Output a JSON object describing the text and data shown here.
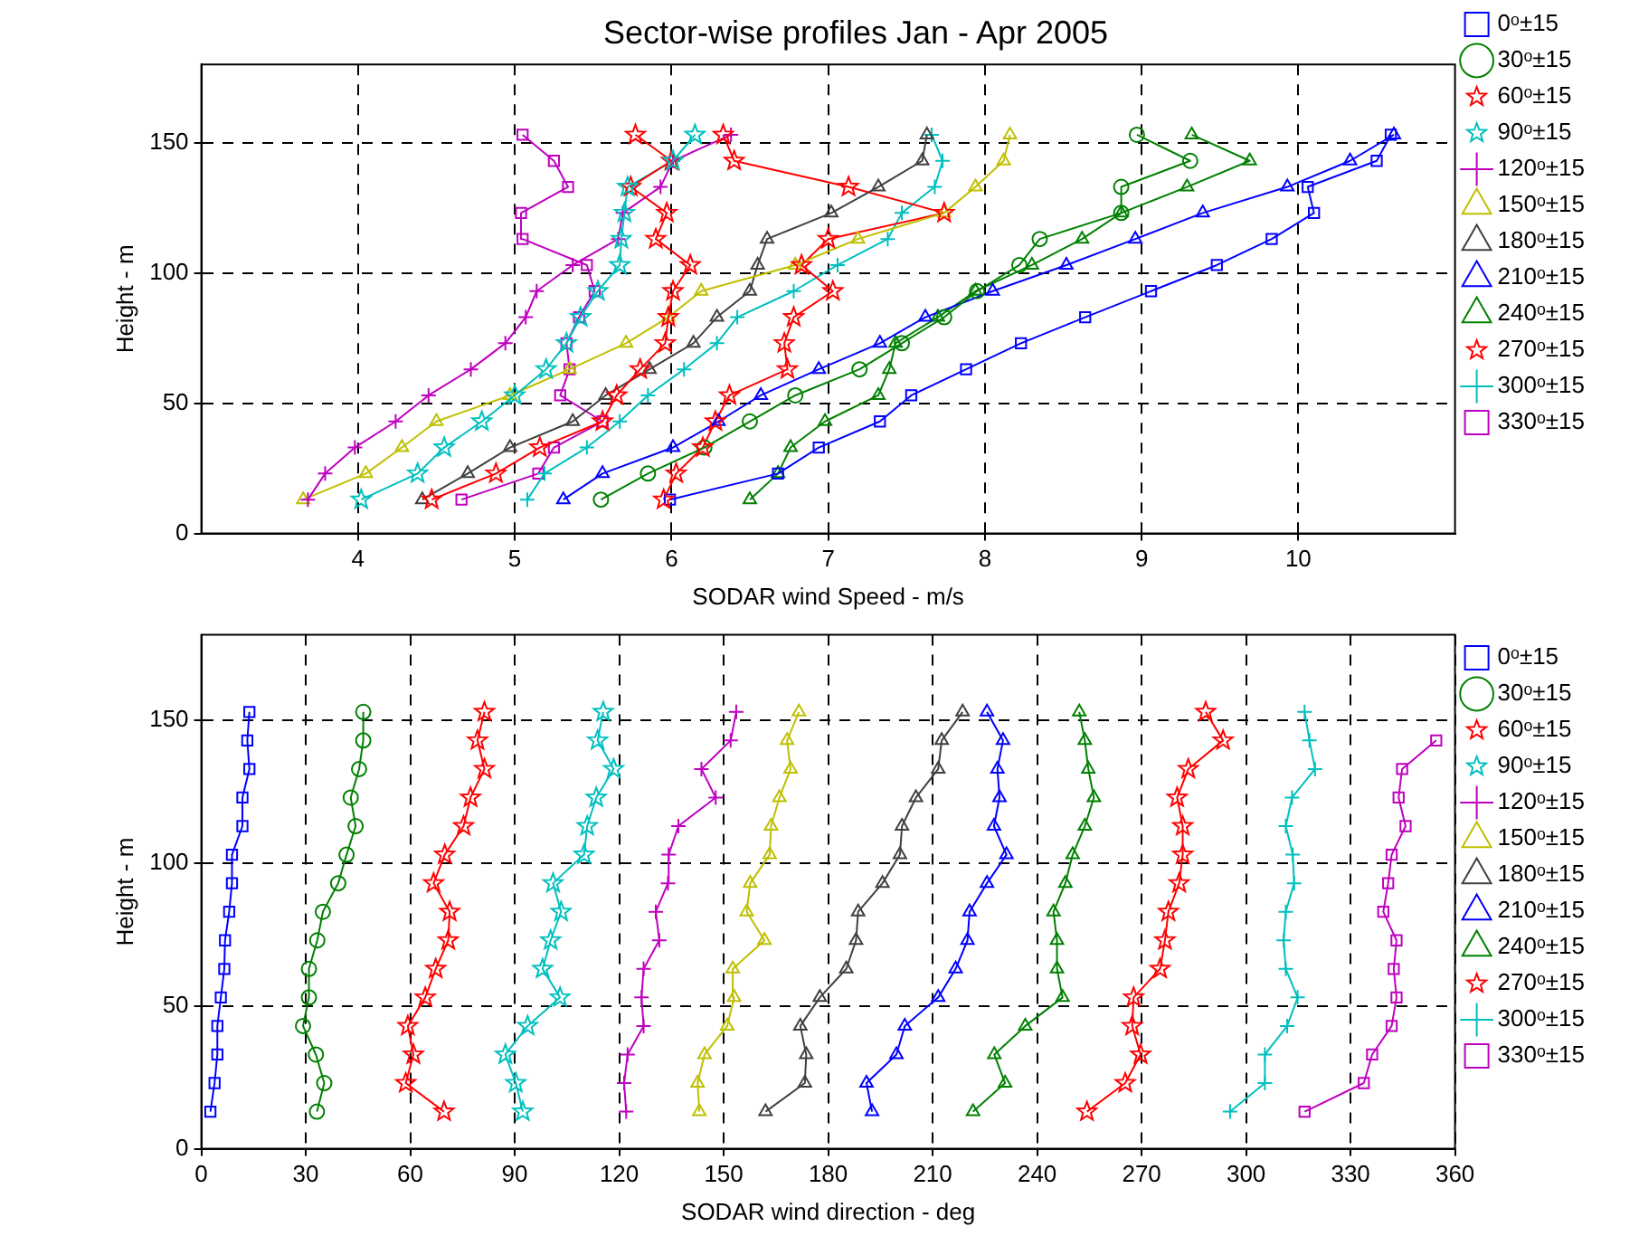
{
  "chart_data": [
    {
      "type": "line",
      "title": "Sector-wise profiles Jan - Apr 2005",
      "xlabel": "SODAR wind Speed - m/s",
      "ylabel": "Height - m",
      "xlim": [
        3,
        11
      ],
      "xticks": [
        4,
        5,
        6,
        7,
        8,
        9,
        10
      ],
      "ylim": [
        0,
        180
      ],
      "yticks": [
        0,
        50,
        100,
        150
      ],
      "grid": true,
      "legend": "right",
      "line_style": "solid",
      "series": [
        {
          "name": "0ᵒ±15",
          "color": "#0000ff",
          "marker": "square",
          "x": [
            5.99,
            6.68,
            6.94,
            7.33,
            7.53,
            7.88,
            8.23,
            8.64,
            9.06,
            9.48,
            9.83,
            10.1,
            10.06,
            10.5,
            10.59
          ],
          "values": [
            13,
            23,
            33,
            43,
            53,
            63,
            73,
            83,
            93,
            103,
            113,
            123,
            133,
            143,
            153
          ]
        },
        {
          "name": "30ᵒ±15",
          "color": "#008000",
          "marker": "circle",
          "x": [
            5.55,
            5.85,
            6.21,
            6.5,
            6.79,
            7.2,
            7.47,
            7.74,
            7.95,
            8.22,
            8.35,
            8.87,
            8.87,
            9.31,
            8.97
          ],
          "values": [
            13,
            23,
            33,
            43,
            53,
            63,
            73,
            83,
            93,
            103,
            113,
            123,
            133,
            143,
            153
          ]
        },
        {
          "name": "60ᵒ±15",
          "color": "#ff0000",
          "marker": "star",
          "x": [
            4.47,
            4.88,
            5.16,
            5.56,
            5.65,
            5.8,
            5.96,
            5.98,
            6.01,
            6.12,
            5.9,
            5.97,
            5.74,
            6.0,
            5.77
          ],
          "values": [
            13,
            23,
            33,
            43,
            53,
            63,
            73,
            83,
            93,
            103,
            113,
            123,
            133,
            143,
            153
          ]
        },
        {
          "name": "90ᵒ±15",
          "color": "#00bfbf",
          "marker": "star",
          "x": [
            4.02,
            4.38,
            4.55,
            4.79,
            5.0,
            5.2,
            5.33,
            5.42,
            5.53,
            5.67,
            5.68,
            5.7,
            5.72,
            6.01,
            6.15
          ],
          "values": [
            13,
            23,
            33,
            43,
            53,
            63,
            73,
            83,
            93,
            103,
            113,
            123,
            133,
            143,
            153
          ]
        },
        {
          "name": "120ᵒ±15",
          "color": "#bf00bf",
          "marker": "cross",
          "x": [
            3.68,
            3.79,
            3.98,
            4.24,
            4.45,
            4.72,
            4.94,
            5.07,
            5.14,
            5.37,
            5.66,
            5.69,
            5.93,
            6.01,
            6.38
          ],
          "values": [
            13,
            23,
            33,
            43,
            53,
            63,
            73,
            83,
            93,
            103,
            113,
            123,
            133,
            143,
            153
          ]
        },
        {
          "name": "150ᵒ±15",
          "color": "#bfbf00",
          "marker": "triangle",
          "x": [
            3.65,
            4.05,
            4.28,
            4.5,
            4.97,
            5.35,
            5.71,
            5.98,
            6.19,
            6.79,
            7.19,
            7.74,
            7.94,
            8.12,
            8.16
          ],
          "values": [
            13,
            23,
            33,
            43,
            53,
            63,
            73,
            83,
            93,
            103,
            113,
            123,
            133,
            143,
            153
          ]
        },
        {
          "name": "180ᵒ±15",
          "color": "#404040",
          "marker": "triangle",
          "x": [
            4.41,
            4.7,
            4.97,
            5.37,
            5.58,
            5.86,
            6.14,
            6.29,
            6.5,
            6.55,
            6.61,
            7.02,
            7.32,
            7.6,
            7.63
          ],
          "values": [
            13,
            23,
            33,
            43,
            53,
            63,
            73,
            83,
            93,
            103,
            113,
            123,
            133,
            143,
            153
          ]
        },
        {
          "name": "210ᵒ±15",
          "color": "#0000ff",
          "marker": "triangle",
          "x": [
            5.31,
            5.56,
            6.01,
            6.3,
            6.57,
            6.94,
            7.33,
            7.62,
            8.05,
            8.52,
            8.96,
            9.39,
            9.93,
            10.33,
            10.61
          ],
          "values": [
            13,
            23,
            33,
            43,
            53,
            63,
            73,
            83,
            93,
            103,
            113,
            123,
            133,
            143,
            153
          ]
        },
        {
          "name": "240ᵒ±15",
          "color": "#008000",
          "marker": "triangle",
          "x": [
            6.5,
            6.68,
            6.76,
            6.98,
            7.32,
            7.39,
            7.43,
            7.7,
            7.94,
            8.3,
            8.62,
            8.87,
            9.29,
            9.69,
            9.32
          ],
          "values": [
            13,
            23,
            33,
            43,
            53,
            63,
            73,
            83,
            93,
            103,
            113,
            123,
            133,
            143,
            153
          ]
        },
        {
          "name": "270ᵒ±15",
          "color": "#ff0000",
          "marker": "star",
          "x": [
            5.95,
            6.03,
            6.2,
            6.28,
            6.37,
            6.74,
            6.72,
            6.78,
            7.03,
            6.83,
            7.0,
            7.74,
            7.13,
            6.4,
            6.33
          ],
          "values": [
            13,
            23,
            33,
            43,
            53,
            63,
            73,
            83,
            93,
            103,
            113,
            123,
            133,
            143,
            153
          ]
        },
        {
          "name": "300ᵒ±15",
          "color": "#00bfbf",
          "marker": "cross",
          "x": [
            5.08,
            5.19,
            5.46,
            5.67,
            5.85,
            6.08,
            6.29,
            6.42,
            6.78,
            7.06,
            7.38,
            7.47,
            7.68,
            7.73,
            7.66
          ],
          "values": [
            13,
            23,
            33,
            43,
            53,
            63,
            73,
            83,
            93,
            103,
            113,
            123,
            133,
            143,
            153
          ]
        },
        {
          "name": "330ᵒ±15",
          "color": "#bf00bf",
          "marker": "square",
          "x": [
            4.66,
            5.15,
            5.25,
            5.56,
            5.29,
            5.35,
            5.33,
            5.41,
            5.51,
            5.46,
            5.05,
            5.04,
            5.34,
            5.25,
            5.05
          ],
          "values": [
            13,
            23,
            33,
            43,
            53,
            63,
            73,
            83,
            93,
            103,
            113,
            123,
            133,
            143,
            153
          ]
        }
      ]
    },
    {
      "type": "line",
      "xlabel": "SODAR wind direction - deg",
      "ylabel": "Height - m",
      "xlim": [
        0,
        360
      ],
      "xticks": [
        0,
        30,
        60,
        90,
        120,
        150,
        180,
        210,
        240,
        270,
        300,
        330,
        360
      ],
      "ylim": [
        0,
        180
      ],
      "yticks": [
        0,
        50,
        100,
        150
      ],
      "grid": true,
      "legend": "right",
      "line_style": "solid",
      "series": [
        {
          "name": "0ᵒ±15",
          "color": "#0000ff",
          "marker": "square",
          "x": [
            2.6,
            3.8,
            4.6,
            4.6,
            5.6,
            6.6,
            6.8,
            8.0,
            8.8,
            8.8,
            11.8,
            11.8,
            13.8,
            13.2,
            13.8
          ],
          "values": [
            13,
            23,
            33,
            43,
            53,
            63,
            73,
            83,
            93,
            103,
            113,
            123,
            133,
            143,
            153
          ]
        },
        {
          "name": "30ᵒ±15",
          "color": "#008000",
          "marker": "circle",
          "x": [
            33.2,
            35.3,
            32.9,
            29.2,
            30.9,
            30.9,
            33.3,
            34.9,
            39.3,
            41.7,
            44.3,
            42.9,
            45.3,
            46.5,
            46.5
          ],
          "values": [
            13,
            23,
            33,
            43,
            53,
            63,
            73,
            83,
            93,
            103,
            113,
            123,
            133,
            143,
            153
          ]
        },
        {
          "name": "60ᵒ±15",
          "color": "#ff0000",
          "marker": "star",
          "x": [
            69.7,
            58.7,
            60.9,
            59.3,
            64.3,
            67.3,
            70.9,
            71.3,
            66.7,
            69.9,
            75.3,
            77.3,
            81.3,
            79.3,
            81.3
          ],
          "values": [
            13,
            23,
            33,
            43,
            53,
            63,
            73,
            83,
            93,
            103,
            113,
            123,
            133,
            143,
            153
          ]
        },
        {
          "name": "90ᵒ±15",
          "color": "#00bfbf",
          "marker": "star",
          "x": [
            92.3,
            90.3,
            87.3,
            93.7,
            103.0,
            98.0,
            100.3,
            103.3,
            101.0,
            109.9,
            110.8,
            113.4,
            118.4,
            113.8,
            115.4
          ],
          "values": [
            13,
            23,
            33,
            43,
            53,
            63,
            73,
            83,
            93,
            103,
            113,
            123,
            133,
            143,
            153
          ]
        },
        {
          "name": "120ᵒ±15",
          "color": "#bf00bf",
          "marker": "cross",
          "x": [
            122.0,
            121.4,
            122.4,
            127.0,
            126.4,
            127.0,
            131.5,
            130.5,
            134.0,
            134.2,
            137.0,
            147.7,
            143.6,
            152.0,
            153.6
          ],
          "values": [
            13,
            23,
            33,
            43,
            53,
            63,
            73,
            83,
            93,
            103,
            113,
            123,
            133,
            143,
            153
          ]
        },
        {
          "name": "150ᵒ±15",
          "color": "#bfbf00",
          "marker": "triangle",
          "x": [
            143.0,
            142.5,
            144.5,
            151.0,
            153.0,
            152.6,
            161.7,
            156.6,
            157.6,
            163.2,
            163.6,
            166.0,
            169.2,
            168.2,
            171.6
          ],
          "values": [
            13,
            23,
            33,
            43,
            53,
            63,
            73,
            83,
            93,
            103,
            113,
            123,
            133,
            143,
            153
          ]
        },
        {
          "name": "180ᵒ±15",
          "color": "#404040",
          "marker": "triangle",
          "x": [
            162.0,
            173.3,
            173.7,
            172.0,
            177.6,
            185.2,
            188.0,
            188.6,
            195.6,
            200.6,
            201.2,
            205.2,
            211.6,
            212.6,
            218.6
          ],
          "values": [
            13,
            23,
            33,
            43,
            53,
            63,
            73,
            83,
            93,
            103,
            113,
            123,
            133,
            143,
            153
          ]
        },
        {
          "name": "210ᵒ±15",
          "color": "#0000ff",
          "marker": "triangle",
          "x": [
            192.6,
            191.0,
            199.6,
            202.0,
            211.6,
            216.6,
            220.0,
            220.6,
            225.6,
            231.2,
            227.6,
            229.2,
            228.6,
            230.2,
            225.6
          ],
          "values": [
            13,
            23,
            33,
            43,
            53,
            63,
            73,
            83,
            93,
            103,
            113,
            123,
            133,
            143,
            153
          ]
        },
        {
          "name": "240ᵒ±15",
          "color": "#008000",
          "marker": "triangle",
          "x": [
            221.6,
            230.8,
            227.7,
            236.6,
            247.3,
            245.7,
            245.7,
            244.7,
            248.1,
            250.2,
            253.7,
            256.3,
            254.7,
            253.7,
            252.1
          ],
          "values": [
            13,
            23,
            33,
            43,
            53,
            63,
            73,
            83,
            93,
            103,
            113,
            123,
            133,
            143,
            153
          ]
        },
        {
          "name": "270ᵒ±15",
          "color": "#ff0000",
          "marker": "star",
          "x": [
            254.3,
            265.3,
            269.7,
            267.3,
            267.7,
            275.3,
            276.7,
            277.7,
            280.8,
            281.8,
            281.8,
            280.2,
            283.4,
            293.4,
            288.4
          ],
          "values": [
            13,
            23,
            33,
            43,
            53,
            63,
            73,
            83,
            93,
            103,
            113,
            123,
            133,
            143,
            153
          ]
        },
        {
          "name": "300ᵒ±15",
          "color": "#00bfbf",
          "marker": "cross",
          "x": [
            295.4,
            305.4,
            305.4,
            311.8,
            314.8,
            311.4,
            310.8,
            311.4,
            313.8,
            313.4,
            311.4,
            313.2,
            319.8,
            318.2,
            316.8
          ],
          "values": [
            13,
            23,
            33,
            43,
            53,
            63,
            73,
            83,
            93,
            103,
            113,
            123,
            133,
            143,
            153
          ]
        },
        {
          "name": "330ᵒ±15",
          "color": "#bf00bf",
          "marker": "square",
          "x": [
            316.8,
            333.8,
            336.2,
            341.8,
            343.2,
            342.4,
            343.2,
            339.4,
            340.8,
            341.8,
            345.8,
            343.8,
            344.8,
            354.6
          ],
          "values": [
            13,
            23,
            33,
            43,
            53,
            63,
            73,
            83,
            93,
            103,
            113,
            123,
            133,
            143
          ]
        }
      ]
    }
  ]
}
